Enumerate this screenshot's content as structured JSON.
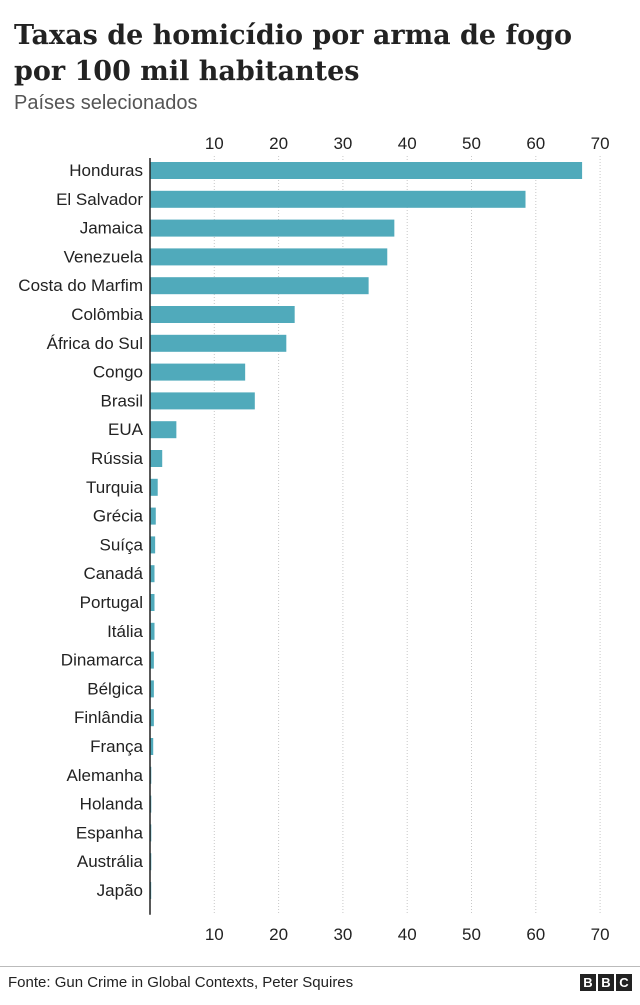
{
  "title": "Taxas de homicídio por arma de fogo por 100 mil habitantes",
  "subtitle": "Países selecionados",
  "source": "Fonte: Gun Crime in Global Contexts, Peter Squires",
  "logo": [
    "B",
    "B",
    "C"
  ],
  "chart_data": {
    "type": "bar",
    "orientation": "horizontal",
    "title": "Taxas de homicídio por arma de fogo por 100 mil habitantes",
    "subtitle": "Países selecionados",
    "xlabel": "",
    "ylabel": "",
    "xlim": [
      0,
      70
    ],
    "xticks": [
      10,
      20,
      30,
      40,
      50,
      60,
      70
    ],
    "grid": true,
    "bar_color": "#50aabb",
    "categories": [
      "Honduras",
      "El Salvador",
      "Jamaica",
      "Venezuela",
      "Costa do Marfim",
      "Colômbia",
      "África do Sul",
      "Congo",
      "Brasil",
      "EUA",
      "Rússia",
      "Turquia",
      "Grécia",
      "Suíça",
      "Canadá",
      "Portugal",
      "Itália",
      "Dinamarca",
      "Bélgica",
      "Finlândia",
      "França",
      "Alemanha",
      "Holanda",
      "Espanha",
      "Austrália",
      "Japão"
    ],
    "values": [
      67.2,
      58.4,
      38.0,
      36.9,
      34.0,
      22.5,
      21.2,
      14.8,
      16.3,
      4.1,
      1.9,
      1.2,
      0.9,
      0.8,
      0.7,
      0.7,
      0.7,
      0.6,
      0.6,
      0.6,
      0.5,
      0.2,
      0.2,
      0.2,
      0.2,
      0.1
    ]
  }
}
